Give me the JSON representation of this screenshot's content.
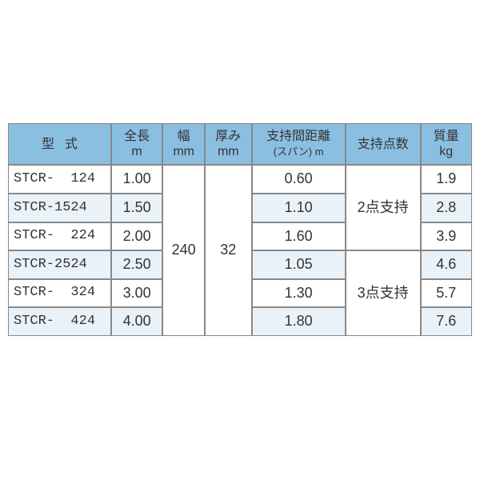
{
  "table": {
    "background_color": "#ffffff",
    "stripe_color": "#eaf2f9",
    "header_bg": "#8bbfe2",
    "border_color": "#888888",
    "text_color": "#333333",
    "header_fontsize": 16,
    "body_fontsize": 18,
    "columns": {
      "model": {
        "label_top": "型",
        "label_bottom": "式",
        "width_pct": 22
      },
      "length": {
        "label_top": "全長",
        "label_bottom": "m",
        "width_pct": 11
      },
      "width": {
        "label_top": "幅",
        "label_bottom": "mm",
        "width_pct": 9
      },
      "thick": {
        "label_top": "厚み",
        "label_bottom": "mm",
        "width_pct": 10
      },
      "span": {
        "label_top": "支持間距離",
        "label_bottom": "(スパン) m",
        "width_pct": 19
      },
      "points": {
        "label_top": "支持点数",
        "width_pct": 16
      },
      "mass": {
        "label_top": "質量",
        "label_bottom": "kg",
        "width_pct": 11
      }
    },
    "shared": {
      "width_mm": "240",
      "thick_mm": "32",
      "points2": "2点支持",
      "points3": "3点支持"
    },
    "rows": [
      {
        "model": "STCR-  124",
        "length": "1.00",
        "span": "0.60",
        "mass": "1.9"
      },
      {
        "model": "STCR-1524",
        "length": "1.50",
        "span": "1.10",
        "mass": "2.8"
      },
      {
        "model": "STCR-  224",
        "length": "2.00",
        "span": "1.60",
        "mass": "3.9"
      },
      {
        "model": "STCR-2524",
        "length": "2.50",
        "span": "1.05",
        "mass": "4.6"
      },
      {
        "model": "STCR-  324",
        "length": "3.00",
        "span": "1.30",
        "mass": "5.7"
      },
      {
        "model": "STCR-  424",
        "length": "4.00",
        "span": "1.80",
        "mass": "7.6"
      }
    ]
  }
}
